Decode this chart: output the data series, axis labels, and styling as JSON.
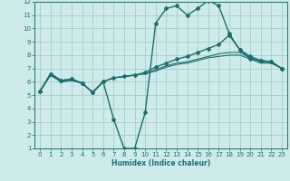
{
  "xlabel": "Humidex (Indice chaleur)",
  "bg_color": "#ceeaea",
  "grid_color": "#aed0d0",
  "line_color": "#1e6e6e",
  "xlim": [
    -0.5,
    23.5
  ],
  "ylim": [
    1,
    12
  ],
  "xticks": [
    0,
    1,
    2,
    3,
    4,
    5,
    6,
    7,
    8,
    9,
    10,
    11,
    12,
    13,
    14,
    15,
    16,
    17,
    18,
    19,
    20,
    21,
    22,
    23
  ],
  "yticks": [
    1,
    2,
    3,
    4,
    5,
    6,
    7,
    8,
    9,
    10,
    11,
    12
  ],
  "line1_x": [
    0,
    1,
    2,
    3,
    4,
    5,
    6,
    7,
    8,
    9,
    10,
    11,
    12,
    13,
    14,
    15,
    16,
    17,
    18,
    19,
    20,
    21,
    22,
    23
  ],
  "line1_y": [
    5.3,
    6.6,
    6.1,
    6.2,
    5.9,
    5.2,
    6.0,
    3.2,
    1.0,
    1.0,
    3.7,
    10.4,
    11.5,
    11.7,
    11.0,
    11.5,
    12.1,
    11.7,
    9.6,
    8.4,
    7.7,
    7.6,
    7.5,
    7.0
  ],
  "line2_x": [
    0,
    1,
    2,
    3,
    4,
    5,
    6,
    7,
    8,
    9,
    10,
    11,
    12,
    13,
    14,
    15,
    16,
    17,
    18,
    19,
    20,
    21,
    22,
    23
  ],
  "line2_y": [
    5.3,
    6.6,
    6.1,
    6.2,
    5.9,
    5.2,
    6.0,
    6.3,
    6.4,
    6.5,
    6.7,
    7.1,
    7.4,
    7.7,
    7.9,
    8.2,
    8.5,
    8.8,
    9.5,
    8.4,
    7.9,
    7.6,
    7.5,
    7.0
  ],
  "line3_x": [
    0,
    1,
    2,
    3,
    4,
    5,
    6,
    7,
    8,
    9,
    10,
    11,
    12,
    13,
    14,
    15,
    16,
    17,
    18,
    19,
    20,
    21,
    22,
    23
  ],
  "line3_y": [
    5.3,
    6.5,
    6.0,
    6.1,
    5.9,
    5.2,
    6.0,
    6.3,
    6.4,
    6.5,
    6.6,
    6.9,
    7.2,
    7.4,
    7.5,
    7.7,
    7.9,
    8.1,
    8.2,
    8.2,
    7.8,
    7.5,
    7.4,
    7.0
  ],
  "line4_x": [
    0,
    1,
    2,
    3,
    4,
    5,
    6,
    7,
    8,
    9,
    10,
    11,
    12,
    13,
    14,
    15,
    16,
    17,
    18,
    19,
    20,
    21,
    22,
    23
  ],
  "line4_y": [
    5.3,
    6.5,
    6.0,
    6.1,
    5.9,
    5.2,
    6.0,
    6.3,
    6.4,
    6.5,
    6.6,
    6.8,
    7.1,
    7.3,
    7.4,
    7.6,
    7.8,
    7.9,
    8.0,
    8.0,
    7.7,
    7.4,
    7.4,
    7.0
  ]
}
